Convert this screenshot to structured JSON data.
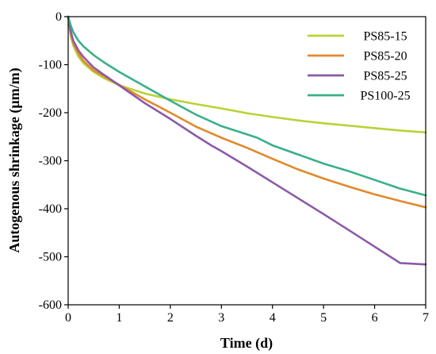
{
  "chart_data": {
    "type": "line",
    "title": "",
    "xlabel": "Time (d)",
    "ylabel": "Autogenous shrinkage (μm/m)",
    "xlim": [
      0,
      7
    ],
    "ylim": [
      -600,
      0
    ],
    "xticks": [
      0,
      1,
      2,
      3,
      4,
      5,
      6,
      7
    ],
    "yticks": [
      0,
      -100,
      -200,
      -300,
      -400,
      -500,
      -600
    ],
    "grid": false,
    "legend_position": "top-right",
    "series": [
      {
        "name": "PS85-15",
        "color": "#b7d437",
        "x": [
          0,
          0.05,
          0.1,
          0.2,
          0.3,
          0.5,
          0.7,
          1.0,
          1.5,
          2.0,
          2.5,
          3.0,
          3.5,
          4.0,
          4.5,
          5.0,
          5.5,
          6.0,
          6.5,
          7.0
        ],
        "y": [
          0,
          -40,
          -60,
          -83,
          -97,
          -115,
          -128,
          -143,
          -160,
          -172,
          -182,
          -191,
          -201,
          -209,
          -216,
          -222,
          -227,
          -232,
          -237,
          -241
        ]
      },
      {
        "name": "PS85-20",
        "color": "#e08a2c",
        "x": [
          0,
          0.05,
          0.1,
          0.2,
          0.3,
          0.5,
          0.7,
          1.0,
          1.5,
          2.0,
          2.5,
          3.0,
          3.5,
          4.0,
          4.5,
          5.0,
          5.5,
          6.0,
          6.5,
          7.0
        ],
        "y": [
          0,
          -35,
          -55,
          -77,
          -92,
          -112,
          -124,
          -142,
          -172,
          -200,
          -229,
          -252,
          -273,
          -296,
          -318,
          -337,
          -354,
          -370,
          -384,
          -397
        ]
      },
      {
        "name": "PS85-25",
        "color": "#8c5aa8",
        "x": [
          0,
          0.05,
          0.1,
          0.2,
          0.3,
          0.5,
          0.7,
          1.0,
          1.5,
          2.0,
          2.5,
          2.8,
          3.0,
          3.5,
          4.0,
          4.5,
          5.0,
          5.5,
          6.0,
          6.5,
          7.0
        ],
        "y": [
          0,
          -30,
          -50,
          -70,
          -84,
          -106,
          -121,
          -143,
          -180,
          -213,
          -248,
          -268,
          -280,
          -312,
          -345,
          -378,
          -411,
          -445,
          -479,
          -513,
          -516
        ]
      },
      {
        "name": "PS100-25",
        "color": "#3aaf8c",
        "x": [
          0,
          0.05,
          0.1,
          0.2,
          0.3,
          0.5,
          0.7,
          1.0,
          1.5,
          2.0,
          2.5,
          3.0,
          3.5,
          3.7,
          4.0,
          4.5,
          5.0,
          5.5,
          6.0,
          6.5,
          7.0
        ],
        "y": [
          0,
          -18,
          -32,
          -50,
          -62,
          -80,
          -95,
          -115,
          -145,
          -175,
          -204,
          -228,
          -245,
          -252,
          -268,
          -287,
          -306,
          -322,
          -340,
          -358,
          -372
        ]
      }
    ]
  }
}
